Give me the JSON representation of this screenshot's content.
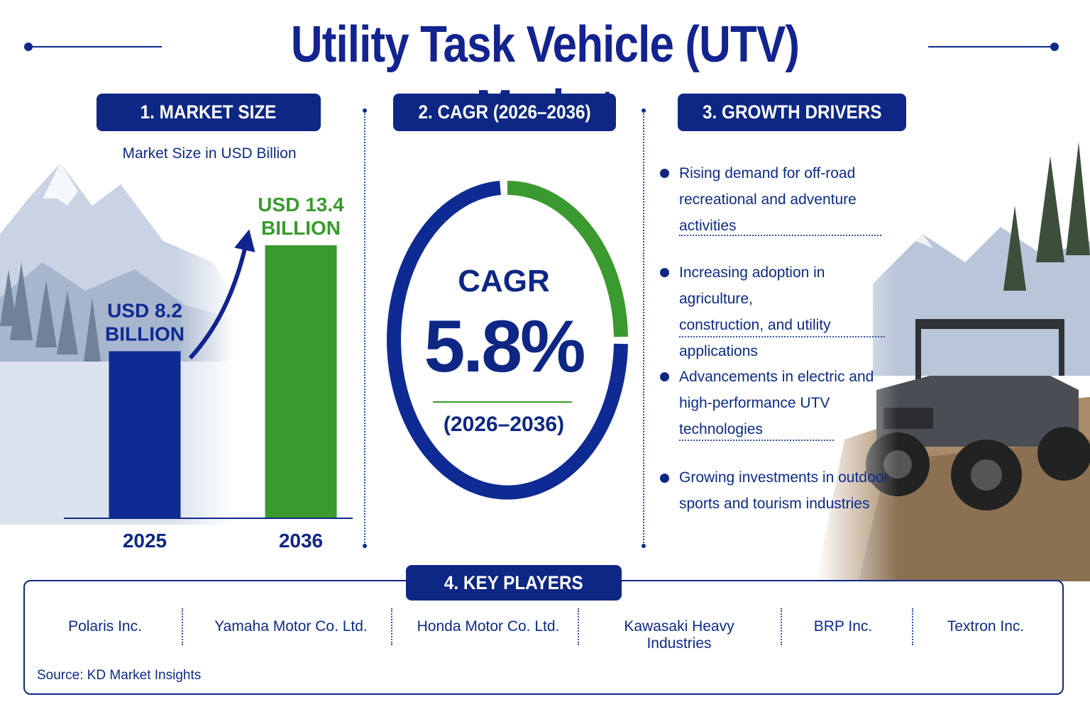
{
  "title": "Utility Task Vehicle (UTV) Market",
  "sections": {
    "market_size": "1. MARKET SIZE",
    "cagr": "2. CAGR (2026–2036)",
    "growth_drivers": "3. GROWTH DRIVERS",
    "key_players": "4. KEY PLAYERS"
  },
  "chart_data": {
    "type": "bar",
    "title": "Market Size in USD Billion",
    "categories": [
      "2025",
      "2036"
    ],
    "values": [
      8.2,
      13.4
    ],
    "data_labels": [
      [
        "USD 8.2",
        "BILLION"
      ],
      [
        "USD 13.4",
        "BILLION"
      ]
    ],
    "ylim": [
      0,
      15
    ],
    "colors": [
      "#0e2a93",
      "#3a9a2f"
    ],
    "grid": false
  },
  "cagr": {
    "label": "CAGR",
    "value": "5.8%",
    "period": "(2026–2036)",
    "ring_colors": [
      "#3a9a2f",
      "#0e2a93"
    ]
  },
  "growth_drivers": [
    [
      "Rising demand for off-road",
      "recreational and adventure activities"
    ],
    [
      "Increasing adoption in agriculture,",
      "construction, and utility applications"
    ],
    [
      "Advancements in electric and",
      "high-performance UTV technologies"
    ],
    [
      "Growing investments in outdoor",
      "sports and tourism industries"
    ]
  ],
  "key_players": [
    "Polaris Inc.",
    "Yamaha Motor Co. Ltd.",
    "Honda Motor Co. Ltd.",
    "Kawasaki Heavy Industries",
    "BRP Inc.",
    "Textron Inc."
  ],
  "source": "Source: KD Market Insights",
  "colors": {
    "navy": "#0e2785",
    "green": "#3a9a2f"
  }
}
